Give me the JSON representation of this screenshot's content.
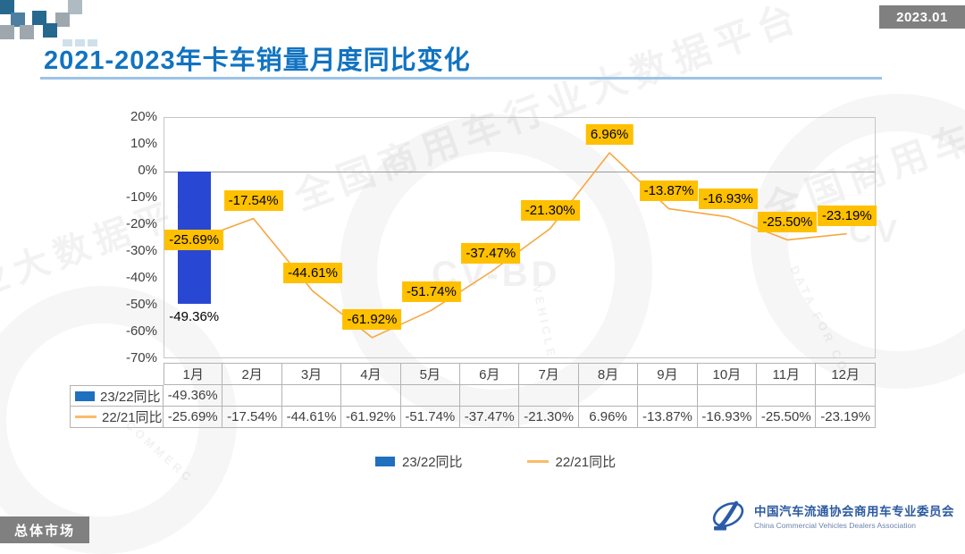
{
  "page": {
    "date_badge": "2023.01",
    "title": "2021-2023年卡车销量月度同比变化",
    "section_badge": "总体市场"
  },
  "chart_data": {
    "type": "bar+line",
    "title": "2021-2023年卡车销量月度同比变化",
    "categories": [
      "1月",
      "2月",
      "3月",
      "4月",
      "5月",
      "6月",
      "7月",
      "8月",
      "9月",
      "10月",
      "11月",
      "12月"
    ],
    "series": [
      {
        "name": "23/22同比",
        "type": "bar",
        "color": "#2847D2",
        "swatch_color": "#1F70BE",
        "values": [
          -49.36,
          null,
          null,
          null,
          null,
          null,
          null,
          null,
          null,
          null,
          null,
          null
        ]
      },
      {
        "name": "22/21同比",
        "type": "line",
        "color": "#F5A843",
        "swatch_color": "#FABB69",
        "values": [
          -25.69,
          -17.54,
          -44.61,
          -61.92,
          -51.74,
          -37.47,
          -21.3,
          6.96,
          -13.87,
          -16.93,
          -25.5,
          -23.19
        ]
      }
    ],
    "ylim": [
      -70,
      20
    ],
    "ytick_step": 10,
    "ytick_suffix": "%",
    "grid": "zero-line-only",
    "legend_position": "bottom",
    "label_bg": "#FFC000",
    "value_suffix": "%"
  },
  "watermark": {
    "text": "全国商用车行业大数据平台",
    "text_partial": "业大数据平台",
    "cv_big": "CV-BD",
    "cv_small": "CV",
    "data_for": "DATA FOR CO",
    "vehicle": "VEHICLE",
    "commercial": "COMMERC"
  },
  "footer": {
    "org_cn": "中国汽车流通协会商用车专业委员会",
    "org_en": "China Commercial Vehicles Dealers Association"
  }
}
